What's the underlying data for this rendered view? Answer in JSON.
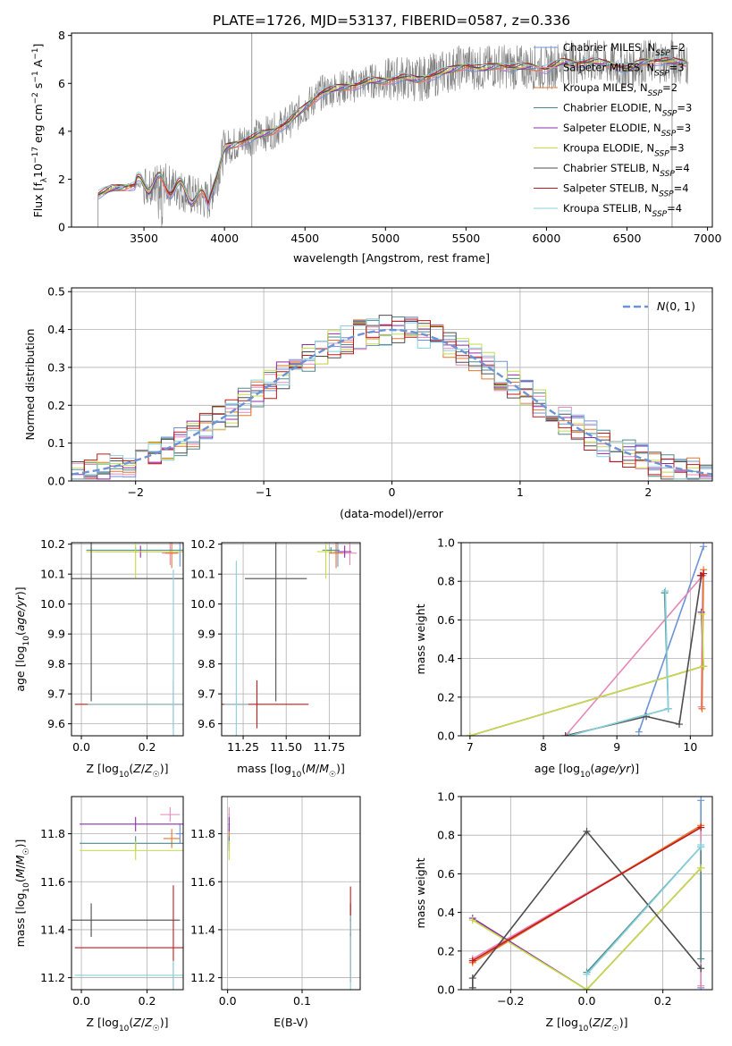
{
  "figure_title": "PLATE=1726, MJD=53137, FIBERID=0587, z=0.336",
  "chart_data": [
    {
      "id": "spectrum",
      "type": "line",
      "title": "PLATE=1726, MJD=53137, FIBERID=0587, z=0.336",
      "xlabel": "wavelength [Angstrom, rest frame]",
      "ylabel": "Flux [f_λ 10^-17 erg cm^-2 s^-1 A^-1]",
      "xlim": [
        3050,
        7030
      ],
      "ylim": [
        0,
        8.1
      ],
      "xticks": [
        3500,
        4000,
        4500,
        5000,
        5500,
        6000,
        6500,
        7000
      ],
      "yticks": [
        0,
        2,
        4,
        6,
        8
      ],
      "grid": false,
      "legend_position": "top-right",
      "data_range": [
        3215,
        6880
      ],
      "data_color": "#808080",
      "continuum": {
        "x": [
          3215,
          3300,
          3400,
          3500,
          3600,
          3700,
          3800,
          3900,
          3950,
          4000,
          4100,
          4200,
          4300,
          4400,
          4500,
          4600,
          4700,
          4800,
          4900,
          5000,
          5100,
          5200,
          5300,
          5400,
          5500,
          5600,
          5700,
          5800,
          5900,
          6000,
          6100,
          6200,
          6300,
          6400,
          6500,
          6600,
          6700,
          6800,
          6880
        ],
        "y": [
          1.35,
          1.6,
          1.7,
          1.8,
          1.85,
          1.65,
          1.3,
          1.1,
          2.0,
          3.3,
          3.55,
          3.8,
          4.0,
          4.4,
          5.0,
          5.6,
          5.8,
          5.9,
          6.1,
          6.1,
          6.25,
          6.15,
          6.35,
          6.55,
          6.75,
          6.6,
          6.75,
          6.65,
          6.7,
          6.6,
          6.9,
          6.85,
          6.9,
          6.8,
          6.6,
          6.9,
          6.95,
          6.9,
          6.85
        ]
      },
      "series": [
        {
          "name": "Chabrier MILES, N_SSP=2",
          "color": "#6c93d6"
        },
        {
          "name": "Salpeter MILES, N_SSP=3",
          "color": "#e687b8"
        },
        {
          "name": "Kroupa MILES, N_SSP=2",
          "color": "#e5762d"
        },
        {
          "name": "Chabrier ELODIE, N_SSP=3",
          "color": "#4f8a8b"
        },
        {
          "name": "Salpeter ELODIE, N_SSP=3",
          "color": "#8e2ca8"
        },
        {
          "name": "Kroupa ELODIE, N_SSP=3",
          "color": "#c6dd45"
        },
        {
          "name": "Chabrier STELIB, N_SSP=4",
          "color": "#4d4d4d"
        },
        {
          "name": "Salpeter STELIB, N_SSP=4",
          "color": "#c21a1a"
        },
        {
          "name": "Kroupa STELIB, N_SSP=4",
          "color": "#87d0dc"
        }
      ]
    },
    {
      "id": "residuals",
      "type": "bar",
      "xlabel": "(data-model)/error",
      "ylabel": "Normed distribution",
      "xlim": [
        -2.5,
        2.5
      ],
      "ylim": [
        0,
        0.51
      ],
      "xticks": [
        -2,
        -1,
        0,
        1,
        2
      ],
      "yticks": [
        0.0,
        0.1,
        0.2,
        0.3,
        0.4,
        0.5
      ],
      "grid": true,
      "legend_position": "top-right",
      "reference": {
        "name": "N(0,1)",
        "mean": 0,
        "sigma": 1,
        "color": "#6c93d6"
      },
      "bin_width": 0.1
    },
    {
      "id": "age_vs_z",
      "type": "scatter",
      "xlabel": "Z [log10(Z/Z☉)]",
      "ylabel": "age [log10(age/yr)]",
      "xlim": [
        -0.03,
        0.31
      ],
      "ylim": [
        9.56,
        10.205
      ],
      "xticks": [
        0.0,
        0.2
      ],
      "yticks": [
        9.6,
        9.7,
        9.8,
        9.9,
        10.0,
        10.1,
        10.2
      ],
      "grid": true,
      "points": [
        {
          "series": "Chabrier MILES",
          "x": 0.3,
          "y": 10.175,
          "xerr": 0.012,
          "yerr": 0.05
        },
        {
          "series": "Salpeter MILES",
          "x": 0.27,
          "y": 10.17,
          "xerr": 0.025,
          "yerr": 0.04
        },
        {
          "series": "Kroupa MILES",
          "x": 0.275,
          "y": 10.17,
          "xerr": 0.02,
          "yerr": 0.05
        },
        {
          "series": "Chabrier ELODIE",
          "x": 0.165,
          "y": 10.18,
          "xerr": 0.15,
          "yerr": 0.01
        },
        {
          "series": "Salpeter ELODIE",
          "x": 0.18,
          "y": 10.175,
          "xerr": 0.14,
          "yerr": 0.02
        },
        {
          "series": "Kroupa ELODIE",
          "x": 0.165,
          "y": 10.175,
          "xerr": 0.15,
          "yerr": 0.09
        },
        {
          "series": "Chabrier STELIB",
          "x": 0.03,
          "y": 10.085,
          "xerr": 0.29,
          "yerr": 0.41
        },
        {
          "series": "Salpeter STELIB",
          "x": 0.28,
          "y": 9.665,
          "xerr": 0.3,
          "yerr": 0.08
        },
        {
          "series": "Kroupa STELIB",
          "x": 0.28,
          "y": 9.665,
          "xerr": 0.26,
          "yerr": 0.45
        }
      ]
    },
    {
      "id": "age_vs_mass",
      "type": "scatter",
      "xlabel": "mass [log10(M/M☉)]",
      "ylabel": "",
      "xlim": [
        11.125,
        11.93
      ],
      "ylim": [
        9.56,
        10.205
      ],
      "xticks": [
        11.25,
        11.5,
        11.75
      ],
      "yticks": [
        9.6,
        9.7,
        9.8,
        9.9,
        10.0,
        10.1,
        10.2
      ],
      "grid": true,
      "points": [
        {
          "series": "Chabrier MILES",
          "x": 11.8,
          "y": 10.175,
          "xerr": 0.03,
          "yerr": 0.05
        },
        {
          "series": "Salpeter MILES",
          "x": 11.87,
          "y": 10.17,
          "xerr": 0.04,
          "yerr": 0.04
        },
        {
          "series": "Kroupa MILES",
          "x": 11.79,
          "y": 10.17,
          "xerr": 0.04,
          "yerr": 0.05
        },
        {
          "series": "Chabrier ELODIE",
          "x": 11.76,
          "y": 10.18,
          "xerr": 0.05,
          "yerr": 0.01
        },
        {
          "series": "Salpeter ELODIE",
          "x": 11.84,
          "y": 10.175,
          "xerr": 0.04,
          "yerr": 0.02
        },
        {
          "series": "Kroupa ELODIE",
          "x": 11.73,
          "y": 10.175,
          "xerr": 0.05,
          "yerr": 0.09
        },
        {
          "series": "Chabrier STELIB",
          "x": 11.44,
          "y": 10.085,
          "xerr": 0.18,
          "yerr": 0.41
        },
        {
          "series": "Salpeter STELIB",
          "x": 11.33,
          "y": 9.665,
          "xerr": 0.3,
          "yerr": 0.08
        },
        {
          "series": "Kroupa STELIB",
          "x": 11.21,
          "y": 9.665,
          "xerr": 0.07,
          "yerr": 0.48
        }
      ]
    },
    {
      "id": "weight_vs_age",
      "type": "line",
      "xlabel": "age [log10(age/yr)]",
      "ylabel": "mass weight",
      "xlim": [
        6.88,
        10.3
      ],
      "ylim": [
        0,
        1.0
      ],
      "xticks": [
        7,
        8,
        9,
        10
      ],
      "yticks": [
        0.0,
        0.2,
        0.4,
        0.6,
        0.8,
        1.0
      ],
      "grid": true,
      "series": [
        {
          "name": "Chabrier MILES",
          "x": [
            9.3,
            10.18
          ],
          "y": [
            0.02,
            0.98
          ]
        },
        {
          "name": "Salpeter MILES",
          "x": [
            8.3,
            10.17,
            10.15
          ],
          "y": [
            0.0,
            0.83,
            0.15
          ]
        },
        {
          "name": "Kroupa MILES",
          "x": [
            10.18,
            10.16
          ],
          "y": [
            0.86,
            0.14
          ]
        },
        {
          "name": "Chabrier ELODIE",
          "x": [
            8.35,
            9.7,
            9.65
          ],
          "y": [
            0.0,
            0.14,
            0.74
          ]
        },
        {
          "name": "Salpeter ELODIE",
          "x": [
            7.0,
            10.18,
            10.15
          ],
          "y": [
            0.0,
            0.36,
            0.64
          ]
        },
        {
          "name": "Kroupa ELODIE",
          "x": [
            7.0,
            10.18,
            10.16
          ],
          "y": [
            0.0,
            0.36,
            0.63
          ]
        },
        {
          "name": "Chabrier STELIB",
          "x": [
            8.3,
            9.4,
            9.85,
            10.15
          ],
          "y": [
            0.0,
            0.1,
            0.06,
            0.83
          ]
        },
        {
          "name": "Salpeter STELIB",
          "x": [
            10.14,
            10.18
          ],
          "y": [
            0.83,
            0.84
          ]
        },
        {
          "name": "Kroupa STELIB",
          "x": [
            8.35,
            9.7,
            9.66
          ],
          "y": [
            0.0,
            0.14,
            0.75
          ]
        }
      ]
    },
    {
      "id": "mass_vs_z",
      "type": "scatter",
      "xlabel": "Z [log10(Z/Z☉)]",
      "ylabel": "mass [log10(M/M☉)]",
      "xlim": [
        -0.03,
        0.31
      ],
      "ylim": [
        11.15,
        11.955
      ],
      "xticks": [
        0.0,
        0.2
      ],
      "yticks": [
        11.2,
        11.4,
        11.6,
        11.8
      ],
      "grid": true,
      "points": [
        {
          "series": "Chabrier MILES",
          "x": 0.3,
          "y": 11.8,
          "xerr": 0.012,
          "yerr": 0.04
        },
        {
          "series": "Salpeter MILES",
          "x": 0.27,
          "y": 11.88,
          "xerr": 0.03,
          "yerr": 0.03
        },
        {
          "series": "Kroupa MILES",
          "x": 0.275,
          "y": 11.78,
          "xerr": 0.025,
          "yerr": 0.04
        },
        {
          "series": "Chabrier ELODIE",
          "x": 0.165,
          "y": 11.76,
          "xerr": 0.17,
          "yerr": 0.03
        },
        {
          "series": "Salpeter ELODIE",
          "x": 0.165,
          "y": 11.84,
          "xerr": 0.17,
          "yerr": 0.03
        },
        {
          "series": "Kroupa ELODIE",
          "x": 0.165,
          "y": 11.73,
          "xerr": 0.17,
          "yerr": 0.04
        },
        {
          "series": "Chabrier STELIB",
          "x": 0.03,
          "y": 11.44,
          "xerr": 0.27,
          "yerr": 0.07
        },
        {
          "series": "Salpeter STELIB",
          "x": 0.28,
          "y": 11.325,
          "xerr": 0.3,
          "yerr": 0.26
        },
        {
          "series": "Kroupa STELIB",
          "x": 0.28,
          "y": 11.21,
          "xerr": 0.3,
          "yerr": 0.06
        }
      ]
    },
    {
      "id": "mass_vs_ebv",
      "type": "scatter",
      "xlabel": "E(B-V)",
      "ylabel": "",
      "xlim": [
        -0.008,
        0.178
      ],
      "ylim": [
        11.15,
        11.955
      ],
      "xticks": [
        0.0,
        0.1
      ],
      "yticks": [
        11.2,
        11.4,
        11.6,
        11.8
      ],
      "grid": true,
      "points": [
        {
          "series": "Chabrier MILES",
          "x": 0.002,
          "y": 11.8,
          "xerr": 0.001,
          "yerr": 0.04
        },
        {
          "series": "Salpeter MILES",
          "x": 0.002,
          "y": 11.88,
          "xerr": 0.001,
          "yerr": 0.03
        },
        {
          "series": "Kroupa MILES",
          "x": 0.002,
          "y": 11.78,
          "xerr": 0.001,
          "yerr": 0.04
        },
        {
          "series": "Chabrier ELODIE",
          "x": 0.002,
          "y": 11.76,
          "xerr": 0.001,
          "yerr": 0.03
        },
        {
          "series": "Salpeter ELODIE",
          "x": 0.002,
          "y": 11.84,
          "xerr": 0.001,
          "yerr": 0.03
        },
        {
          "series": "Kroupa ELODIE",
          "x": 0.002,
          "y": 11.73,
          "xerr": 0.001,
          "yerr": 0.04
        },
        {
          "series": "Chabrier STELIB",
          "x": 0.165,
          "y": 11.44,
          "xerr": 0.001,
          "yerr": 0.07
        },
        {
          "series": "Salpeter STELIB",
          "x": 0.165,
          "y": 11.38,
          "xerr": 0.001,
          "yerr": 0.2
        },
        {
          "series": "Kroupa STELIB",
          "x": 0.165,
          "y": 11.3,
          "xerr": 0.001,
          "yerr": 0.16
        }
      ]
    },
    {
      "id": "weight_vs_z",
      "type": "line",
      "xlabel": "Z [log10(Z/Z☉)]",
      "ylabel": "mass weight",
      "xlim": [
        -0.33,
        0.33
      ],
      "ylim": [
        0,
        1.0
      ],
      "xticks": [
        -0.2,
        0.0,
        0.2
      ],
      "yticks": [
        0.0,
        0.2,
        0.4,
        0.6,
        0.8,
        1.0
      ],
      "grid": true,
      "series": [
        {
          "name": "Chabrier MILES",
          "x": [
            0.3,
            0.3
          ],
          "y": [
            0.01,
            0.98
          ]
        },
        {
          "name": "Salpeter MILES",
          "x": [
            -0.3,
            0.3,
            0.3
          ],
          "y": [
            0.16,
            0.84,
            0.02
          ]
        },
        {
          "name": "Kroupa MILES",
          "x": [
            -0.3,
            0.3
          ],
          "y": [
            0.14,
            0.85
          ]
        },
        {
          "name": "Chabrier ELODIE",
          "x": [
            0.0,
            0.3,
            0.3
          ],
          "y": [
            0.09,
            0.74,
            0.16
          ]
        },
        {
          "name": "Salpeter ELODIE",
          "x": [
            -0.3,
            0.0,
            0.3
          ],
          "y": [
            0.37,
            0.0,
            0.63
          ]
        },
        {
          "name": "Kroupa ELODIE",
          "x": [
            -0.3,
            0.0,
            0.3
          ],
          "y": [
            0.36,
            0.0,
            0.63
          ]
        },
        {
          "name": "Chabrier STELIB",
          "x": [
            -0.3,
            -0.3,
            0.0,
            0.3
          ],
          "y": [
            0.01,
            0.06,
            0.82,
            0.11
          ]
        },
        {
          "name": "Salpeter STELIB",
          "x": [
            -0.3,
            0.3
          ],
          "y": [
            0.15,
            0.84
          ]
        },
        {
          "name": "Kroupa STELIB",
          "x": [
            0.0,
            0.3,
            0.3
          ],
          "y": [
            0.08,
            0.74,
            0.75
          ]
        }
      ]
    }
  ]
}
